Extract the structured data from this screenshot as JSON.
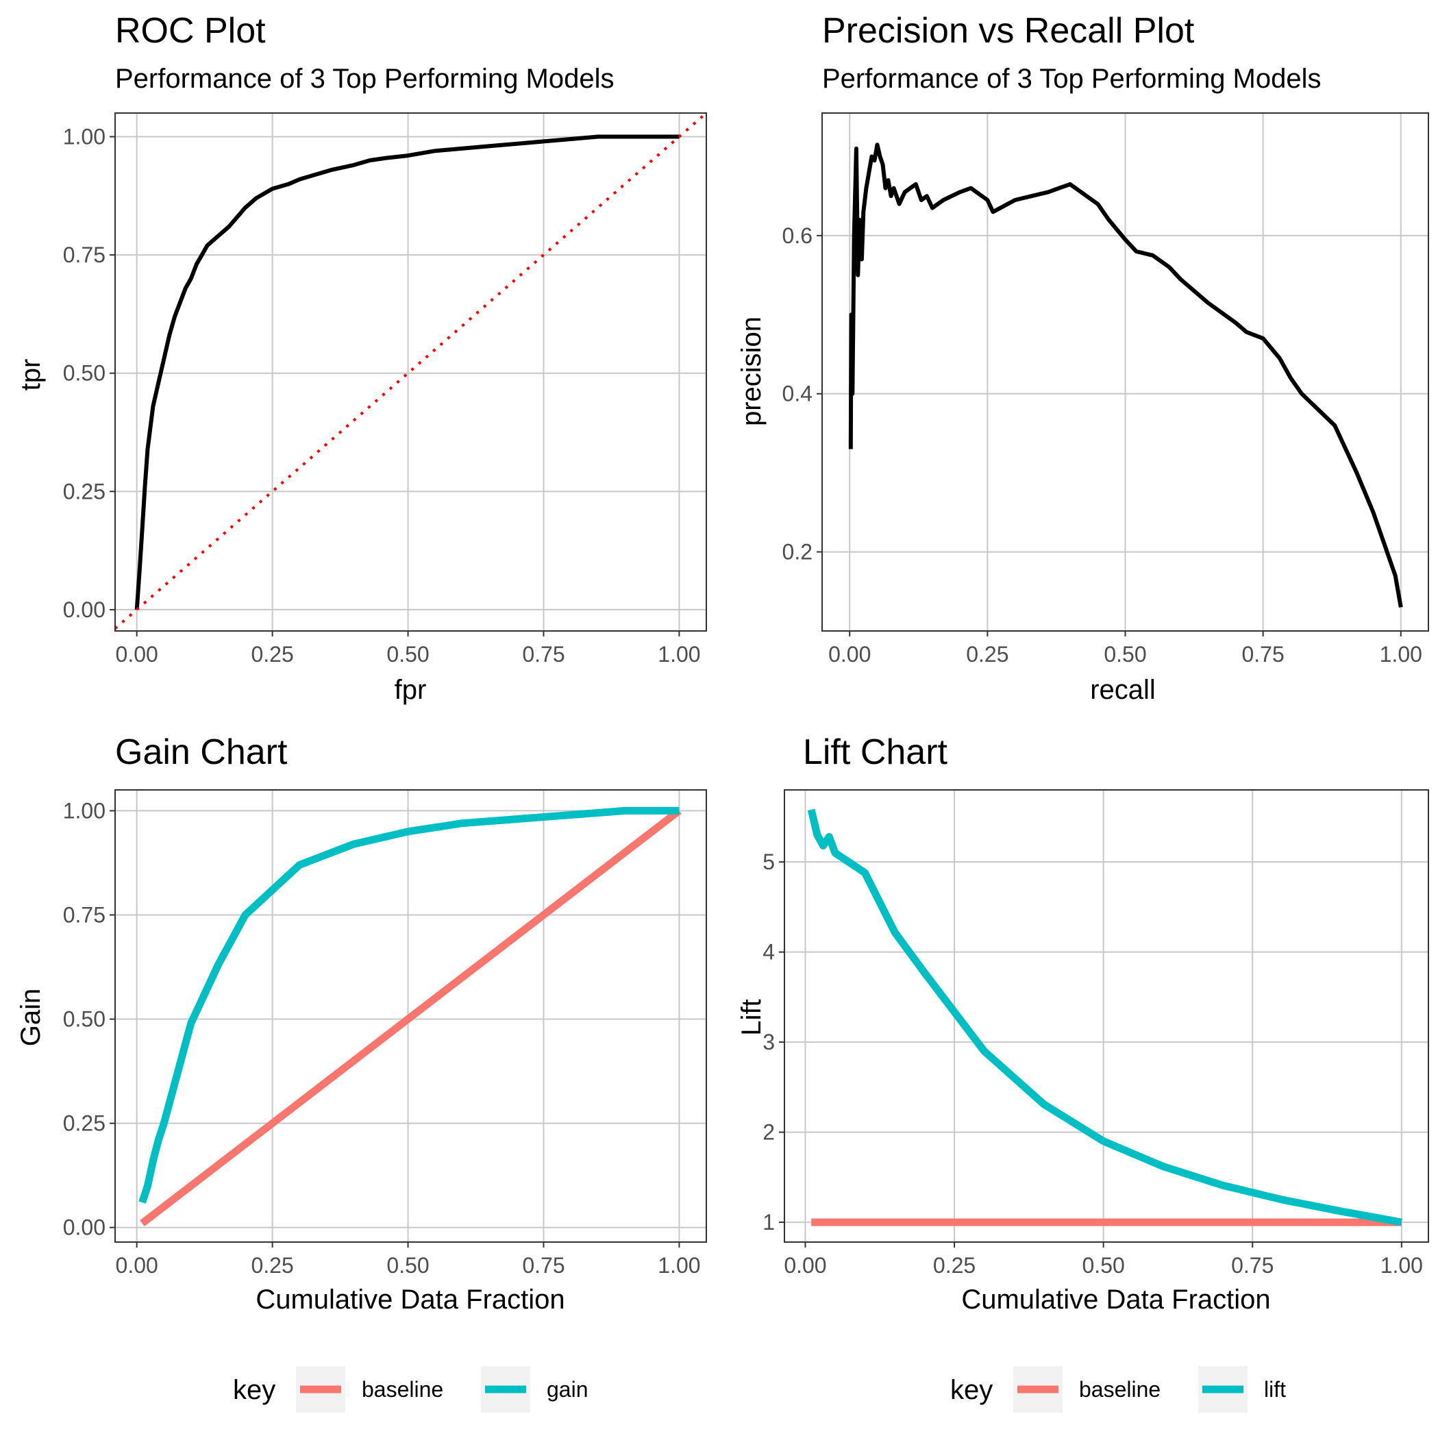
{
  "chart_data": [
    {
      "id": "roc",
      "type": "line",
      "title": "ROC Plot",
      "subtitle": "Performance of 3 Top Performing Models",
      "xlabel": "fpr",
      "ylabel": "tpr",
      "xlim": [
        -0.04,
        1.05
      ],
      "ylim": [
        -0.045,
        1.05
      ],
      "xticks": [
        0,
        0.25,
        0.5,
        0.75,
        1
      ],
      "xtick_labels": [
        "0.00",
        "0.25",
        "0.50",
        "0.75",
        "1.00"
      ],
      "yticks": [
        0,
        0.25,
        0.5,
        0.75,
        1
      ],
      "ytick_labels": [
        "0.00",
        "0.25",
        "0.50",
        "0.75",
        "1.00"
      ],
      "grid": true,
      "series": [
        {
          "color": "#000000",
          "style": "solid",
          "x": [
            0,
            0.005,
            0.01,
            0.015,
            0.02,
            0.03,
            0.04,
            0.05,
            0.06,
            0.07,
            0.08,
            0.09,
            0.1,
            0.11,
            0.12,
            0.13,
            0.15,
            0.17,
            0.2,
            0.22,
            0.25,
            0.28,
            0.3,
            0.33,
            0.36,
            0.4,
            0.43,
            0.46,
            0.5,
            0.55,
            0.6,
            0.65,
            0.7,
            0.75,
            0.8,
            0.85,
            0.9,
            0.95,
            1
          ],
          "y": [
            0,
            0.08,
            0.17,
            0.26,
            0.34,
            0.43,
            0.48,
            0.53,
            0.58,
            0.62,
            0.65,
            0.68,
            0.7,
            0.73,
            0.75,
            0.77,
            0.79,
            0.81,
            0.85,
            0.87,
            0.89,
            0.9,
            0.91,
            0.92,
            0.93,
            0.94,
            0.95,
            0.955,
            0.96,
            0.97,
            0.975,
            0.98,
            0.985,
            0.99,
            0.995,
            1,
            1,
            1,
            1
          ]
        },
        {
          "color": "#ff0000",
          "style": "dotted",
          "x": [
            -0.04,
            1.05
          ],
          "y": [
            -0.04,
            1.05
          ]
        }
      ]
    },
    {
      "id": "pr",
      "type": "line",
      "title": "Precision vs Recall Plot",
      "subtitle": "Performance of 3 Top Performing Models",
      "xlabel": "recall",
      "ylabel": "precision",
      "xlim": [
        -0.05,
        1.05
      ],
      "ylim": [
        0.1,
        0.755
      ],
      "xticks": [
        0,
        0.25,
        0.5,
        0.75,
        1
      ],
      "xtick_labels": [
        "0.00",
        "0.25",
        "0.50",
        "0.75",
        "1.00"
      ],
      "yticks": [
        0.2,
        0.4,
        0.6
      ],
      "ytick_labels": [
        "0.2",
        "0.4",
        "0.6"
      ],
      "grid": true,
      "series": [
        {
          "color": "#000000",
          "style": "solid",
          "x": [
            0.002,
            0.003,
            0.005,
            0.008,
            0.012,
            0.015,
            0.018,
            0.02,
            0.022,
            0.025,
            0.03,
            0.035,
            0.04,
            0.045,
            0.05,
            0.055,
            0.06,
            0.065,
            0.07,
            0.075,
            0.08,
            0.09,
            0.1,
            0.11,
            0.12,
            0.13,
            0.14,
            0.15,
            0.17,
            0.2,
            0.22,
            0.25,
            0.26,
            0.3,
            0.33,
            0.36,
            0.38,
            0.4,
            0.42,
            0.44,
            0.45,
            0.47,
            0.5,
            0.52,
            0.55,
            0.58,
            0.6,
            0.65,
            0.7,
            0.72,
            0.75,
            0.78,
            0.8,
            0.82,
            0.85,
            0.88,
            0.9,
            0.92,
            0.95,
            0.97,
            0.99,
            1
          ],
          "y": [
            0.33,
            0.5,
            0.4,
            0.6,
            0.71,
            0.55,
            0.62,
            0.6,
            0.57,
            0.63,
            0.66,
            0.68,
            0.7,
            0.695,
            0.715,
            0.7,
            0.69,
            0.66,
            0.67,
            0.65,
            0.66,
            0.64,
            0.655,
            0.66,
            0.665,
            0.645,
            0.65,
            0.635,
            0.645,
            0.655,
            0.66,
            0.645,
            0.63,
            0.645,
            0.65,
            0.655,
            0.66,
            0.665,
            0.655,
            0.645,
            0.64,
            0.62,
            0.595,
            0.58,
            0.575,
            0.56,
            0.545,
            0.515,
            0.49,
            0.478,
            0.47,
            0.445,
            0.42,
            0.4,
            0.38,
            0.36,
            0.33,
            0.3,
            0.25,
            0.21,
            0.17,
            0.13
          ]
        }
      ]
    },
    {
      "id": "gain",
      "type": "line",
      "title": "Gain Chart",
      "xlabel": "Cumulative Data Fraction",
      "ylabel": "Gain",
      "xlim": [
        -0.04,
        1.05
      ],
      "ylim": [
        -0.035,
        1.05
      ],
      "xticks": [
        0,
        0.25,
        0.5,
        0.75,
        1
      ],
      "xtick_labels": [
        "0.00",
        "0.25",
        "0.50",
        "0.75",
        "1.00"
      ],
      "yticks": [
        0,
        0.25,
        0.5,
        0.75,
        1
      ],
      "ytick_labels": [
        "0.00",
        "0.25",
        "0.50",
        "0.75",
        "1.00"
      ],
      "grid": true,
      "legend": {
        "title": "key",
        "position": "bottom",
        "entries": [
          {
            "label": "baseline",
            "color": "#f8766d"
          },
          {
            "label": "gain",
            "color": "#00bfc4"
          }
        ]
      },
      "series": [
        {
          "name": "baseline",
          "color": "#f8766d",
          "x": [
            0.01,
            1
          ],
          "y": [
            0.01,
            1
          ]
        },
        {
          "name": "gain",
          "color": "#00bfc4",
          "x": [
            0.01,
            0.02,
            0.03,
            0.04,
            0.05,
            0.1,
            0.15,
            0.2,
            0.3,
            0.4,
            0.5,
            0.6,
            0.7,
            0.8,
            0.9,
            1
          ],
          "y": [
            0.06,
            0.1,
            0.16,
            0.21,
            0.25,
            0.49,
            0.63,
            0.75,
            0.87,
            0.92,
            0.95,
            0.97,
            0.98,
            0.99,
            1,
            1
          ]
        }
      ]
    },
    {
      "id": "lift",
      "type": "line",
      "title": "Lift Chart",
      "xlabel": "Cumulative Data Fraction",
      "ylabel": "Lift",
      "xlim": [
        -0.035,
        1.045
      ],
      "ylim": [
        0.78,
        5.8
      ],
      "xticks": [
        0,
        0.25,
        0.5,
        0.75,
        1
      ],
      "xtick_labels": [
        "0.00",
        "0.25",
        "0.50",
        "0.75",
        "1.00"
      ],
      "yticks": [
        1,
        2,
        3,
        4,
        5
      ],
      "ytick_labels": [
        "1",
        "2",
        "3",
        "4",
        "5"
      ],
      "grid": true,
      "legend": {
        "title": "key",
        "position": "bottom",
        "entries": [
          {
            "label": "baseline",
            "color": "#f8766d"
          },
          {
            "label": "lift",
            "color": "#00bfc4"
          }
        ]
      },
      "series": [
        {
          "name": "baseline",
          "color": "#f8766d",
          "x": [
            0.01,
            1
          ],
          "y": [
            1,
            1
          ]
        },
        {
          "name": "lift",
          "color": "#00bfc4",
          "x": [
            0.01,
            0.02,
            0.03,
            0.04,
            0.05,
            0.1,
            0.15,
            0.2,
            0.3,
            0.4,
            0.5,
            0.6,
            0.7,
            0.8,
            0.9,
            1
          ],
          "y": [
            5.58,
            5.3,
            5.18,
            5.28,
            5.1,
            4.88,
            4.22,
            3.77,
            2.9,
            2.31,
            1.9,
            1.62,
            1.41,
            1.25,
            1.12,
            1
          ]
        }
      ]
    }
  ]
}
